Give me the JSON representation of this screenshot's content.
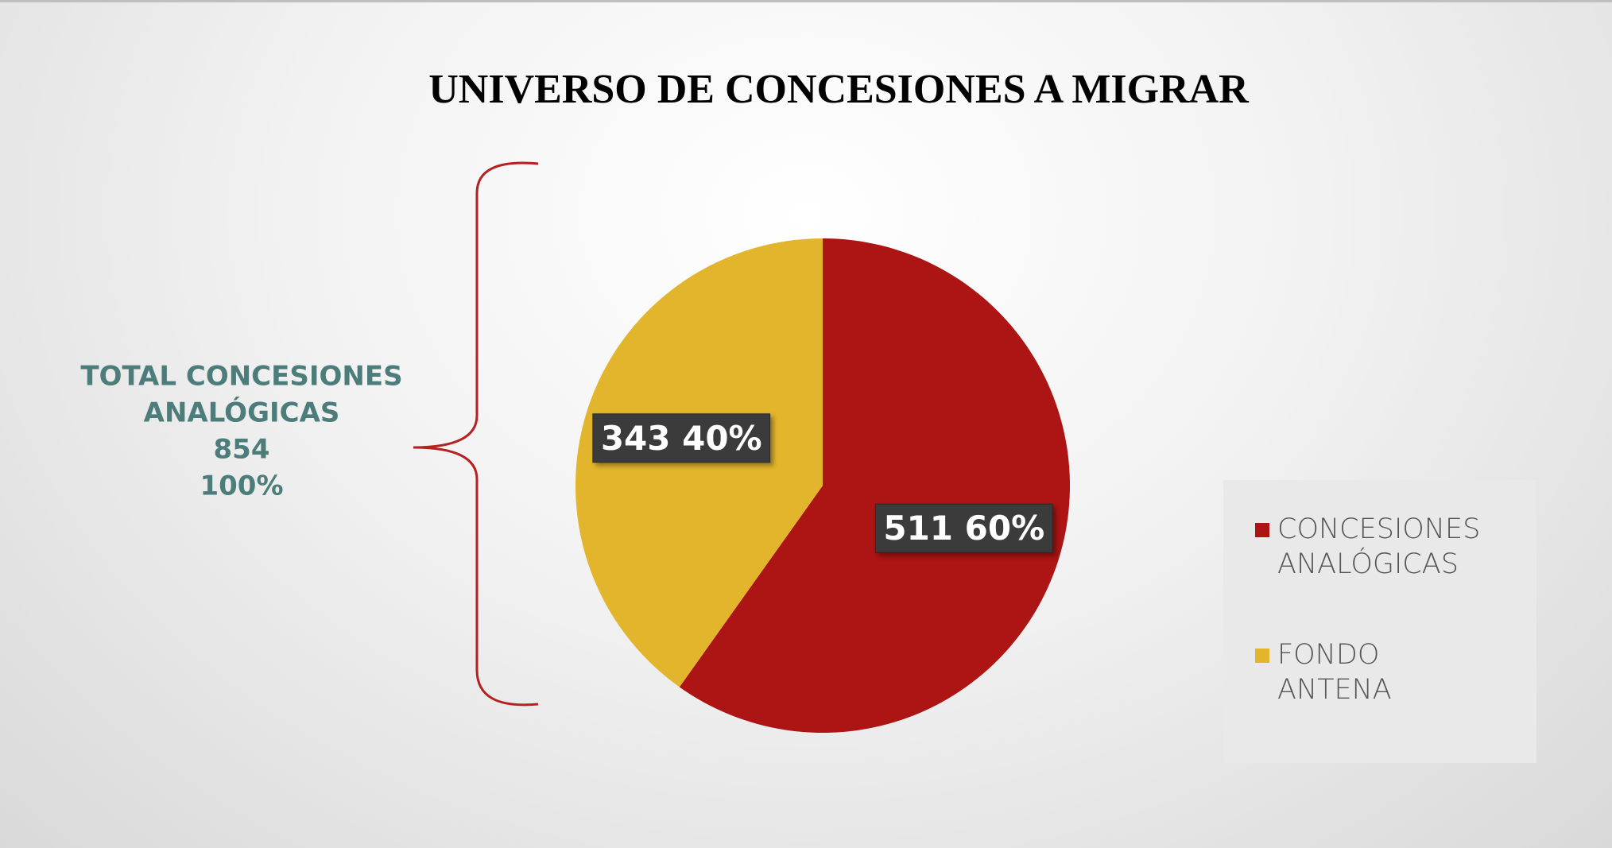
{
  "chart_data": {
    "type": "pie",
    "title": "UNIVERSO DE CONCESIONES A MIGRAR",
    "categories": [
      "CONCESIONES ANALÓGICAS",
      "FONDO ANTENA"
    ],
    "values": [
      511,
      343
    ],
    "value_labels": [
      "511 60%",
      "343 40%"
    ],
    "colors": [
      "#ad1414",
      "#e3b52c"
    ],
    "annotation": [
      "TOTAL CONCESIONES",
      "ANALÓGICAS",
      "854",
      "100%"
    ],
    "legend": "right"
  }
}
